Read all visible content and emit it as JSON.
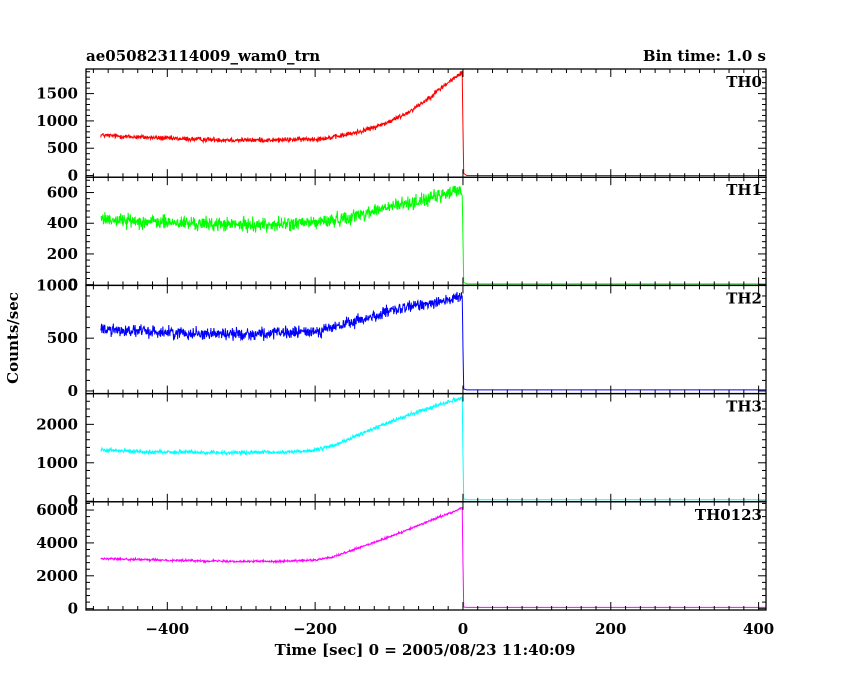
{
  "header": {
    "title": "ae050823114009_wam0_trn",
    "bin_time": "Bin time: 1.0 s"
  },
  "chart_data": {
    "type": "line",
    "xlabel": "Time [sec] 0 = 2005/08/23 11:40:09",
    "ylabel": "Counts/sec",
    "xlim": [
      -510,
      410
    ],
    "x_ticks": [
      -400,
      -200,
      0,
      200,
      400
    ],
    "x_tick_labels": [
      "−400",
      "−200",
      "0",
      "200",
      "400"
    ],
    "panels": [
      {
        "name": "TH0",
        "color": "#ff0000",
        "ylim": [
          -30,
          1950
        ],
        "y_ticks": [
          0,
          500,
          1000,
          1500
        ],
        "y_tick_labels": [
          "0",
          "500",
          "1000",
          "1500"
        ],
        "noise": 35,
        "x": [
          -490,
          -450,
          -400,
          -350,
          -300,
          -250,
          -200,
          -175,
          -150,
          -125,
          -100,
          -75,
          -50,
          -25,
          -10,
          -1,
          0,
          1,
          5,
          410
        ],
        "y": [
          740,
          710,
          680,
          660,
          650,
          650,
          670,
          700,
          770,
          860,
          980,
          1150,
          1380,
          1650,
          1800,
          1880,
          900,
          40,
          0,
          0
        ]
      },
      {
        "name": "TH1",
        "color": "#00ff00",
        "ylim": [
          -5,
          700
        ],
        "y_ticks": [
          0,
          200,
          400,
          600
        ],
        "y_tick_labels": [
          "0",
          "200",
          "400",
          "600"
        ],
        "noise": 35,
        "x": [
          -490,
          -450,
          -400,
          -350,
          -300,
          -250,
          -200,
          -175,
          -150,
          -125,
          -100,
          -75,
          -50,
          -25,
          -10,
          -1,
          0,
          1,
          5,
          410
        ],
        "y": [
          430,
          415,
          405,
          395,
          390,
          392,
          405,
          420,
          445,
          475,
          505,
          530,
          555,
          585,
          610,
          620,
          300,
          15,
          5,
          5
        ]
      },
      {
        "name": "TH2",
        "color": "#0000ff",
        "ylim": [
          -25,
          1000
        ],
        "y_ticks": [
          0,
          500,
          1000
        ],
        "y_tick_labels": [
          "0",
          "500",
          "1000"
        ],
        "noise": 45,
        "x": [
          -490,
          -450,
          -400,
          -350,
          -300,
          -250,
          -200,
          -175,
          -150,
          -125,
          -100,
          -75,
          -50,
          -25,
          -10,
          -1,
          0,
          1,
          5,
          410
        ],
        "y": [
          585,
          570,
          555,
          545,
          540,
          545,
          565,
          600,
          650,
          700,
          750,
          790,
          830,
          860,
          875,
          890,
          400,
          20,
          10,
          10
        ]
      },
      {
        "name": "TH3",
        "color": "#00ffff",
        "ylim": [
          -15,
          2800
        ],
        "y_ticks": [
          0,
          1000,
          2000
        ],
        "y_tick_labels": [
          "0",
          "1000",
          "2000"
        ],
        "noise": 40,
        "x": [
          -490,
          -450,
          -400,
          -350,
          -300,
          -250,
          -200,
          -175,
          -150,
          -125,
          -100,
          -75,
          -50,
          -25,
          -10,
          -1,
          0,
          1,
          5,
          410
        ],
        "y": [
          1330,
          1300,
          1280,
          1270,
          1265,
          1270,
          1320,
          1450,
          1650,
          1860,
          2050,
          2230,
          2400,
          2560,
          2640,
          2700,
          1200,
          60,
          40,
          40
        ]
      },
      {
        "name": "TH0123",
        "color": "#ff00ff",
        "ylim": [
          -80,
          6500
        ],
        "y_ticks": [
          0,
          2000,
          4000,
          6000
        ],
        "y_tick_labels": [
          "0",
          "2000",
          "4000",
          "6000"
        ],
        "noise": 50,
        "x": [
          -490,
          -450,
          -400,
          -350,
          -300,
          -250,
          -200,
          -175,
          -150,
          -125,
          -100,
          -75,
          -50,
          -25,
          -10,
          -1,
          0,
          1,
          5,
          410
        ],
        "y": [
          3050,
          3000,
          2950,
          2910,
          2880,
          2880,
          2950,
          3150,
          3550,
          3950,
          4350,
          4800,
          5250,
          5700,
          5950,
          6150,
          2800,
          100,
          80,
          80
        ]
      }
    ]
  }
}
